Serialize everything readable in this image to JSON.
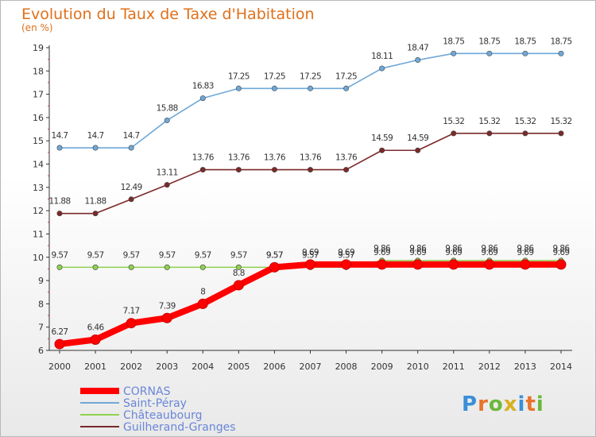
{
  "chart_data": {
    "type": "line",
    "title": "Evolution du Taux de Taxe d'Habitation",
    "subtitle": "(en %)",
    "xlabel": "",
    "ylabel": "",
    "x": [
      "2000",
      "2001",
      "2002",
      "2003",
      "2004",
      "2005",
      "2006",
      "2007",
      "2008",
      "2009",
      "2010",
      "2011",
      "2012",
      "2013",
      "2014"
    ],
    "ylim": [
      6,
      19
    ],
    "yticks": [
      6,
      7,
      8,
      9,
      10,
      11,
      12,
      13,
      14,
      15,
      16,
      17,
      18,
      19
    ],
    "grid": false,
    "legend_position": "bottom-left",
    "series": [
      {
        "name": "CORNAS",
        "color": "#ff0000",
        "values": [
          6.27,
          6.46,
          7.17,
          7.39,
          8,
          8.8,
          9.57,
          9.69,
          9.69,
          9.69,
          9.69,
          9.69,
          9.69,
          9.69,
          9.69
        ],
        "labels": [
          "6.27",
          "6.46",
          "7.17",
          "7.39",
          "8",
          "8.8",
          "9.57",
          "9.69",
          "9.69",
          "9.69",
          "9.69",
          "9.69",
          "9.69",
          "9.69",
          "9.69"
        ]
      },
      {
        "name": "Saint-Péray",
        "color": "#6fa8d8",
        "values": [
          14.7,
          14.7,
          14.7,
          15.88,
          16.83,
          17.25,
          17.25,
          17.25,
          17.25,
          18.11,
          18.47,
          18.75,
          18.75,
          18.75,
          18.75
        ],
        "labels": [
          "14.7",
          "14.7",
          "14.7",
          "15.88",
          "16.83",
          "17.25",
          "17.25",
          "17.25",
          "17.25",
          "18.11",
          "18.47",
          "18.75",
          "18.75",
          "18.75",
          "18.75"
        ]
      },
      {
        "name": "Châteaubourg",
        "color": "#8fd14f",
        "values": [
          9.57,
          9.57,
          9.57,
          9.57,
          9.57,
          9.57,
          9.57,
          9.57,
          9.57,
          9.86,
          9.86,
          9.86,
          9.86,
          9.86,
          9.86
        ],
        "labels": [
          "9.57",
          "9.57",
          "9.57",
          "9.57",
          "9.57",
          "9.57",
          "9.57",
          "9.57",
          "9.57",
          "9.86",
          "9.86",
          "9.86",
          "9.86",
          "9.86",
          "9.86"
        ]
      },
      {
        "name": "Guilherand-Granges",
        "color": "#7b2a2a",
        "values": [
          11.88,
          11.88,
          12.49,
          13.11,
          13.76,
          13.76,
          13.76,
          13.76,
          13.76,
          14.59,
          14.59,
          15.32,
          15.32,
          15.32,
          15.32
        ],
        "labels": [
          "11.88",
          "11.88",
          "12.49",
          "13.11",
          "13.76",
          "13.76",
          "13.76",
          "13.76",
          "13.76",
          "14.59",
          "14.59",
          "15.32",
          "15.32",
          "15.32",
          "15.32"
        ]
      }
    ]
  },
  "logo": {
    "text": "Proxiti"
  }
}
